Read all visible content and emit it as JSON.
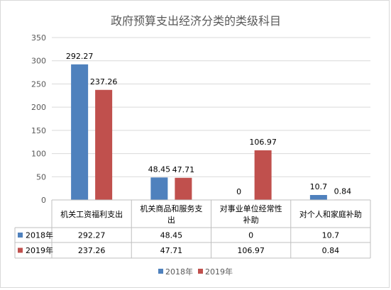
{
  "chart_data": {
    "type": "bar",
    "title": "政府预算支出经济分类的类级科目",
    "categories": [
      [
        "机关工资福利支出"
      ],
      [
        "机关商品和服务支",
        "出"
      ],
      [
        "对事业单位经常性",
        "补助"
      ],
      [
        "对个人和家庭补助"
      ]
    ],
    "series": [
      {
        "name": "2018年",
        "color": "#4f81bd",
        "values": [
          292.27,
          48.45,
          0,
          10.7
        ],
        "labels": [
          "292.27",
          "48.45",
          "0",
          "10.7"
        ]
      },
      {
        "name": "2019年",
        "color": "#c0504d",
        "values": [
          237.26,
          47.71,
          106.97,
          0.84
        ],
        "labels": [
          "237.26",
          "47.71",
          "106.97",
          "0.84"
        ]
      }
    ],
    "ylim": [
      0,
      350
    ],
    "yticks": [
      "0",
      "50",
      "100",
      "150",
      "200",
      "250",
      "300",
      "350"
    ],
    "ytick_values": [
      0,
      50,
      100,
      150,
      200,
      250,
      300,
      350
    ],
    "grid": true,
    "legend": "bottom",
    "data_table": true
  }
}
